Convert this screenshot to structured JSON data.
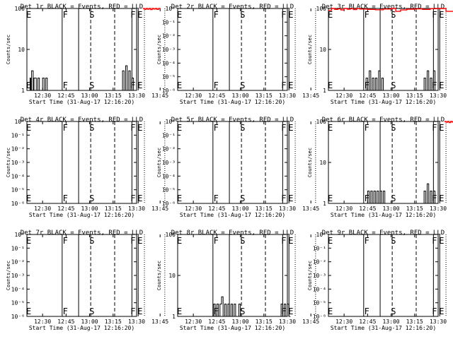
{
  "shared": {
    "x_ticks": [
      "12:30",
      "12:45",
      "13:00",
      "13:15",
      "13:30",
      "13:45"
    ],
    "xlabel": "Start Time (31-Aug-17 12:16:20)",
    "ylabel": "Counts/sec",
    "x_range_minutes": [
      -10,
      60
    ],
    "x_tick_minutes": [
      0,
      15,
      30,
      45,
      60,
      75
    ],
    "solid_lines_minutes": [
      12.5,
      23,
      57,
      61
    ],
    "dashed_lines_minutes": [
      30.7,
      46
    ],
    "dotted_lines_minutes": [
      65,
      78
    ],
    "markers": [
      {
        "label": "E",
        "x": -8.8
      },
      {
        "label": "F",
        "x": 14.5
      },
      {
        "label": "S",
        "x": 31.5
      },
      {
        "label": "F",
        "x": 57.7
      },
      {
        "label": "E",
        "x": 62.2
      }
    ]
  },
  "chart_data": [
    {
      "type": "line",
      "title": "Det 1r BLACK = Events, RED = LLD",
      "yscale": "log",
      "y_tick_labels": [
        "1",
        "10",
        "100"
      ],
      "y_tick_values": [
        1,
        10,
        100
      ],
      "series": [
        {
          "name": "Events",
          "color": "#000000",
          "x": [
            -8.5,
            -8,
            -7.5,
            -7,
            -6,
            -5.5,
            -4,
            -3,
            -2,
            0,
            1,
            2,
            3,
            3.5,
            10,
            11,
            50,
            51,
            52,
            53,
            54,
            55,
            56,
            57,
            58
          ],
          "y": [
            1,
            2,
            1,
            3,
            1,
            2,
            1,
            2,
            1,
            2,
            1,
            2,
            1,
            1,
            1,
            1,
            1,
            3,
            1,
            4,
            1,
            3,
            1,
            2,
            1
          ]
        },
        {
          "name": "LLD",
          "color": "#ff0000",
          "x": [
            64,
            65,
            66,
            67,
            68,
            69,
            70,
            71,
            72,
            73,
            74,
            75
          ],
          "y": [
            100,
            95,
            100,
            96,
            100,
            94,
            100,
            97,
            100,
            95,
            100,
            98
          ]
        }
      ]
    },
    {
      "type": "line",
      "title": "Det 2r BLACK = Events, RED = LLD",
      "yscale": "log",
      "y_tick_labels": [
        "10⁻⁶",
        "10⁻⁵",
        "10⁻⁴",
        "10⁻³",
        "10⁻²",
        "10⁻¹",
        "10⁰"
      ],
      "y_tick_values": [
        1e-06,
        1e-05,
        0.0001,
        0.001,
        0.01,
        0.1,
        1
      ],
      "series": []
    },
    {
      "type": "line",
      "title": "Det 3r BLACK = Events, RED = LLD",
      "yscale": "log",
      "y_tick_labels": [
        "1",
        "10",
        "100"
      ],
      "y_tick_values": [
        1,
        10,
        100
      ],
      "series": [
        {
          "name": "Events",
          "color": "#000000",
          "x": [
            13,
            14,
            15,
            16,
            17,
            18,
            19,
            20,
            21,
            22,
            23,
            24,
            25,
            26,
            50,
            51,
            52,
            53,
            54,
            55,
            56,
            57,
            58
          ],
          "y": [
            1,
            2,
            1,
            3,
            1,
            2,
            1,
            2,
            1,
            3,
            1,
            2,
            1,
            1,
            1,
            2,
            1,
            3,
            1,
            2,
            1,
            3,
            1
          ]
        },
        {
          "name": "LLD",
          "color": "#ff0000",
          "x": [
            -10,
            -8,
            -6,
            -4,
            -2,
            0,
            2,
            4,
            6,
            8,
            10,
            15,
            20,
            25,
            30,
            33,
            36,
            40,
            45,
            50,
            55,
            60,
            65,
            70,
            75,
            80
          ],
          "y": [
            90,
            100,
            95,
            98,
            92,
            100,
            96,
            99,
            94,
            100,
            97,
            95,
            93,
            97,
            100,
            85,
            92,
            96,
            98,
            95,
            99,
            100,
            85,
            97,
            90,
            95
          ]
        }
      ]
    },
    {
      "type": "line",
      "title": "Det 4r BLACK = Events, RED = LLD",
      "yscale": "log",
      "y_tick_labels": [
        "10⁻⁶",
        "10⁻⁵",
        "10⁻⁴",
        "10⁻³",
        "10⁻²",
        "10⁻¹",
        "10⁰"
      ],
      "y_tick_values": [
        1e-06,
        1e-05,
        0.0001,
        0.001,
        0.01,
        0.1,
        1
      ],
      "series": []
    },
    {
      "type": "line",
      "title": "Det 5r BLACK = Events, RED = LLD",
      "yscale": "log",
      "y_tick_labels": [
        "10⁻⁶",
        "10⁻⁵",
        "10⁻⁴",
        "10⁻³",
        "10⁻²",
        "10⁻¹",
        "10⁰"
      ],
      "y_tick_values": [
        1e-06,
        1e-05,
        0.0001,
        0.001,
        0.01,
        0.1,
        1
      ],
      "series": []
    },
    {
      "type": "line",
      "title": "Det 6r BLACK = Events, RED = LLD",
      "yscale": "log",
      "y_tick_labels": [
        "1",
        "10",
        "100"
      ],
      "y_tick_values": [
        1,
        10,
        100
      ],
      "series": [
        {
          "name": "Events",
          "color": "#000000",
          "x": [
            14,
            15,
            16,
            17,
            18,
            19,
            20,
            21,
            22,
            23,
            24,
            25,
            26,
            27,
            50,
            51,
            52,
            53,
            54,
            55,
            56,
            57,
            58
          ],
          "y": [
            1,
            2,
            1,
            2,
            1,
            2,
            1,
            2,
            1,
            2,
            1,
            2,
            1,
            1,
            1,
            2,
            1,
            3,
            1,
            2,
            1,
            2,
            1
          ]
        },
        {
          "name": "LLD",
          "color": "#ff0000",
          "x": [
            64,
            65,
            66,
            67,
            68,
            69,
            70,
            71,
            72,
            73,
            74,
            75
          ],
          "y": [
            100,
            96,
            100,
            94,
            100,
            97,
            100,
            95,
            100,
            98,
            100,
            96
          ]
        }
      ]
    },
    {
      "type": "line",
      "title": "Det 7r BLACK = Events, RED = LLD",
      "yscale": "log",
      "y_tick_labels": [
        "10⁻⁶",
        "10⁻⁵",
        "10⁻⁴",
        "10⁻³",
        "10⁻²",
        "10⁻¹",
        "10⁰"
      ],
      "y_tick_values": [
        1e-06,
        1e-05,
        0.0001,
        0.001,
        0.01,
        0.1,
        1
      ],
      "series": []
    },
    {
      "type": "line",
      "title": "Det 8r BLACK = Events, RED = LLD",
      "yscale": "log",
      "y_tick_labels": [
        "1",
        "10",
        "100"
      ],
      "y_tick_values": [
        1,
        10,
        100
      ],
      "series": [
        {
          "name": "Events",
          "color": "#000000",
          "x": [
            12,
            13,
            14,
            15,
            16,
            17,
            18,
            19,
            20,
            21,
            22,
            23,
            24,
            25,
            26,
            27,
            28,
            29,
            30,
            55,
            56,
            57,
            58,
            59,
            60,
            61,
            62
          ],
          "y": [
            1,
            2,
            1,
            2,
            1,
            2,
            3,
            1,
            2,
            1,
            2,
            1,
            2,
            1,
            2,
            1,
            1,
            2,
            1,
            1,
            2,
            1,
            2,
            1,
            2,
            1,
            1
          ]
        }
      ]
    },
    {
      "type": "line",
      "title": "Det 9r BLACK = Events, RED = LLD",
      "yscale": "log",
      "y_tick_labels": [
        "10⁻⁶",
        "10⁻⁵",
        "10⁻⁴",
        "10⁻³",
        "10⁻²",
        "10⁻¹",
        "10⁰"
      ],
      "y_tick_values": [
        1e-06,
        1e-05,
        0.0001,
        0.001,
        0.01,
        0.1,
        1
      ],
      "series": []
    }
  ]
}
